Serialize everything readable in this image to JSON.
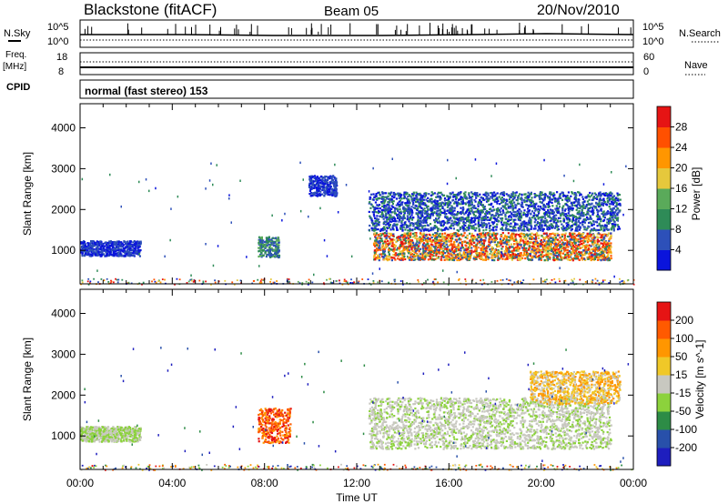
{
  "header": {
    "station": "Blackstone (fitACF)",
    "beam": "Beam 05",
    "date": "20/Nov/2010"
  },
  "top_panels": {
    "nsky_label": "N.Sky",
    "nsky_ticks": [
      "10^5",
      "10^0"
    ],
    "nsearch_ticks": [
      "10^5",
      "10^0"
    ],
    "nsearch_label": "N.Search",
    "freq_label": "Freq.",
    "freq_unit": "[MHz]",
    "freq_ticks": [
      "18",
      "8"
    ],
    "nave_ticks": [
      "60",
      "0"
    ],
    "nave_label": "Nave",
    "cpid_label": "CPID",
    "cpid_text": "normal (fast stereo) 153"
  },
  "time_axis": {
    "label": "Time UT",
    "ticks": [
      "00:00",
      "04:00",
      "08:00",
      "12:00",
      "16:00",
      "20:00",
      "00:00"
    ]
  },
  "chart_data": [
    {
      "type": "heatmap",
      "name": "power",
      "ylabel": "Slant Range [km]",
      "x_range_hours": [
        0,
        24
      ],
      "ylim": [
        180,
        4590
      ],
      "yticks": [
        "1000",
        "2000",
        "3000",
        "4000"
      ],
      "colorbar": {
        "label": "Power [dB]",
        "ticks": [
          "4",
          "8",
          "12",
          "16",
          "20",
          "24",
          "28"
        ],
        "colors": [
          "#0a14dc",
          "#2d50b9",
          "#2e8b57",
          "#5aaa5a",
          "#e6c83c",
          "#ff9600",
          "#ff5000",
          "#e61414"
        ]
      },
      "features": [
        {
          "desc": "band",
          "t0": 0.0,
          "t1": 2.6,
          "r0": 880,
          "r1": 1250,
          "colors": [
            "#0a14dc",
            "#2d50b9"
          ]
        },
        {
          "desc": "patch",
          "t0": 7.7,
          "t1": 8.6,
          "r0": 850,
          "r1": 1350,
          "colors": [
            "#2e8b57",
            "#5aaa5a",
            "#2d50b9"
          ]
        },
        {
          "desc": "patch",
          "t0": 9.9,
          "t1": 11.1,
          "r0": 2350,
          "r1": 2850,
          "colors": [
            "#2d50b9",
            "#0a14dc"
          ]
        },
        {
          "desc": "main-echo",
          "t0": 12.7,
          "t1": 23.0,
          "r0": 780,
          "r1": 1450,
          "colors": [
            "#e61414",
            "#ff5000",
            "#ff9600",
            "#e6c83c",
            "#2e8b57",
            "#2d50b9"
          ]
        },
        {
          "desc": "upper-echo",
          "t0": 12.5,
          "t1": 23.4,
          "r0": 1500,
          "r1": 2450,
          "colors": [
            "#2d50b9",
            "#0a14dc",
            "#2e8b57"
          ]
        }
      ]
    },
    {
      "type": "heatmap",
      "name": "velocity",
      "ylabel": "Slant Range [km]",
      "x_range_hours": [
        0,
        24
      ],
      "ylim": [
        180,
        4590
      ],
      "yticks": [
        "1000",
        "2000",
        "3000",
        "4000"
      ],
      "colorbar": {
        "label": "Velocity [m s^-1]",
        "ticks": [
          "200",
          "100",
          "50",
          "15",
          "-15",
          "-50",
          "-100",
          "-200"
        ],
        "colors": [
          "#1e1ebe",
          "#2850aa",
          "#2d8c46",
          "#8cd23c",
          "#c8c8c0",
          "#f0c828",
          "#ff9600",
          "#ff5a00",
          "#e61414"
        ]
      },
      "features": [
        {
          "desc": "band",
          "t0": 0.0,
          "t1": 2.6,
          "r0": 880,
          "r1": 1250,
          "colors": [
            "#8cd23c",
            "#c8c8c0"
          ]
        },
        {
          "desc": "patch",
          "t0": 7.7,
          "t1": 9.1,
          "r0": 850,
          "r1": 1700,
          "colors": [
            "#ff5a00",
            "#ff9600",
            "#e61414"
          ]
        },
        {
          "desc": "main-echo",
          "t0": 12.5,
          "t1": 23.0,
          "r0": 700,
          "r1": 1950,
          "colors": [
            "#c8c8c0",
            "#c8c8c0",
            "#8cd23c"
          ]
        },
        {
          "desc": "upper-echo",
          "t0": 19.5,
          "t1": 23.4,
          "r0": 1800,
          "r1": 2600,
          "colors": [
            "#f0c828",
            "#ff9600",
            "#c8c8c0"
          ]
        }
      ]
    }
  ]
}
